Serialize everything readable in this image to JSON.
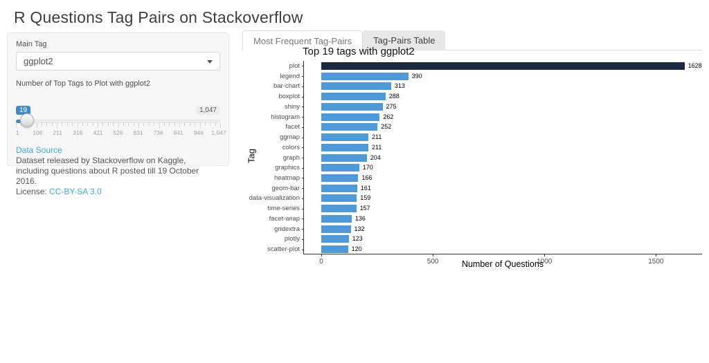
{
  "page": {
    "title": "R Questions Tag Pairs on Stackoverflow"
  },
  "sidebar": {
    "main_tag": {
      "label": "Main Tag",
      "value": "ggplot2"
    },
    "slider": {
      "label": "Number of Top Tags to Plot with ggplot2",
      "value": "19",
      "max_label": "1,047",
      "ticks": [
        "1",
        "106",
        "211",
        "316",
        "421",
        "526",
        "631",
        "736",
        "841",
        "946",
        "1,047"
      ]
    },
    "data_source": {
      "link_label": "Data Source",
      "description": "Dataset released by Stackoverflow on Kaggle, including questions about R posted till 19 October 2016.",
      "license_prefix": "License: ",
      "license_link": "CC-BY-SA 3.0"
    }
  },
  "tabs": {
    "tab1": "Most Frequent Tag-Pairs",
    "tab2": "Tag-Pairs Table"
  },
  "chart_data": {
    "type": "bar",
    "orientation": "horizontal",
    "title": "Top 19 tags with ggplot2",
    "xlabel": "Number of Questions",
    "ylabel": "Tag",
    "categories": [
      "plot",
      "legend",
      "bar-chart",
      "boxplot",
      "shiny",
      "histogram",
      "facet",
      "ggmap",
      "colors",
      "graph",
      "graphics",
      "heatmap",
      "geom-bar",
      "data-visualization",
      "time-series",
      "facet-wrap",
      "gridextra",
      "plotly",
      "scatter-plot"
    ],
    "values": [
      1628,
      390,
      313,
      288,
      275,
      262,
      252,
      211,
      211,
      204,
      170,
      166,
      161,
      159,
      157,
      136,
      132,
      123,
      120
    ],
    "xticks": [
      0,
      500,
      1000,
      1500
    ],
    "xlim": [
      0,
      1710
    ],
    "grid": false,
    "highlight_index": 0,
    "colors": {
      "highlight_bar": "#1b2a41",
      "default_bar": "#4d99da"
    }
  },
  "colors": {
    "accent_blue": "#428bca",
    "link_blue": "#3caadc",
    "panel_bg": "#f7f7f7"
  }
}
